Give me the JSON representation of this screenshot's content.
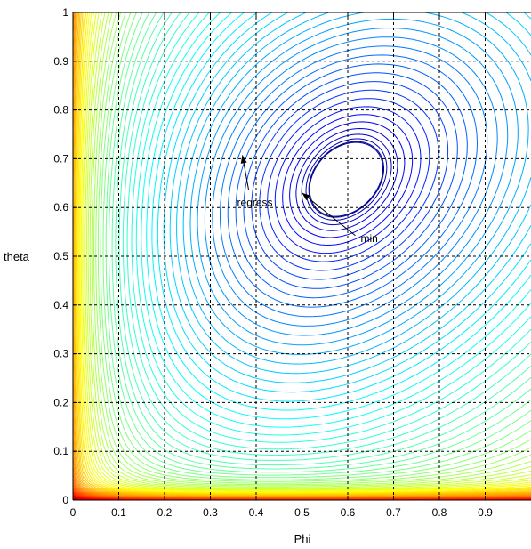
{
  "chart_data": {
    "type": "contour",
    "title": "",
    "xlabel": "Phi",
    "ylabel": "theta",
    "xlim": [
      0,
      1
    ],
    "ylim": [
      0,
      1
    ],
    "grid": true,
    "grid_style": "dashed",
    "x_ticks": [
      0,
      0.1,
      0.2,
      0.3,
      0.4,
      0.5,
      0.6,
      0.7,
      0.8,
      0.9
    ],
    "x_tick_labels": [
      "0",
      "0.1",
      "0.2",
      "0.3",
      "0.4",
      "0.5",
      "0.6",
      "0.7",
      "0.8",
      "0.9"
    ],
    "y_ticks": [
      0,
      0.1,
      0.2,
      0.3,
      0.4,
      0.5,
      0.6,
      0.7,
      0.8,
      0.9,
      1
    ],
    "y_tick_labels": [
      "0",
      "0.1",
      "0.2",
      "0.3",
      "0.4",
      "0.5",
      "0.6",
      "0.7",
      "0.8",
      "0.9",
      "1"
    ],
    "colormap": "jet",
    "minimum": {
      "x": 0.5,
      "y": 0.63
    },
    "annotations": [
      {
        "text": "regress",
        "target": [
          0.37,
          0.7
        ]
      },
      {
        "text": "min",
        "target": [
          0.5,
          0.63
        ]
      }
    ]
  }
}
